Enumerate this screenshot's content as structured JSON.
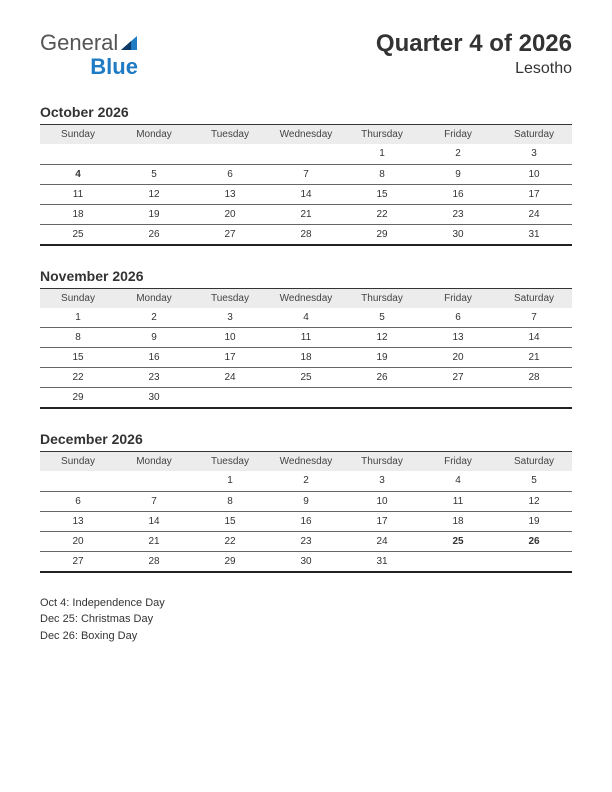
{
  "logo": {
    "part1": "General",
    "part2": "Blue"
  },
  "title": "Quarter 4 of 2026",
  "subtitle": "Lesotho",
  "colors": {
    "holiday": "#c0302c",
    "header_bg": "#ececec",
    "logo_blue": "#1e7bc4",
    "logo_gray": "#555555",
    "text": "#333333",
    "border": "#666666"
  },
  "day_headers": [
    "Sunday",
    "Monday",
    "Tuesday",
    "Wednesday",
    "Thursday",
    "Friday",
    "Saturday"
  ],
  "months": [
    {
      "name": "October 2026",
      "weeks": [
        [
          "",
          "",
          "",
          "",
          "1",
          "2",
          "3"
        ],
        [
          "4",
          "5",
          "6",
          "7",
          "8",
          "9",
          "10"
        ],
        [
          "11",
          "12",
          "13",
          "14",
          "15",
          "16",
          "17"
        ],
        [
          "18",
          "19",
          "20",
          "21",
          "22",
          "23",
          "24"
        ],
        [
          "25",
          "26",
          "27",
          "28",
          "29",
          "30",
          "31"
        ]
      ],
      "holidays": [
        [
          1,
          0
        ]
      ]
    },
    {
      "name": "November 2026",
      "weeks": [
        [
          "1",
          "2",
          "3",
          "4",
          "5",
          "6",
          "7"
        ],
        [
          "8",
          "9",
          "10",
          "11",
          "12",
          "13",
          "14"
        ],
        [
          "15",
          "16",
          "17",
          "18",
          "19",
          "20",
          "21"
        ],
        [
          "22",
          "23",
          "24",
          "25",
          "26",
          "27",
          "28"
        ],
        [
          "29",
          "30",
          "",
          "",
          "",
          "",
          ""
        ]
      ],
      "holidays": []
    },
    {
      "name": "December 2026",
      "weeks": [
        [
          "",
          "",
          "1",
          "2",
          "3",
          "4",
          "5"
        ],
        [
          "6",
          "7",
          "8",
          "9",
          "10",
          "11",
          "12"
        ],
        [
          "13",
          "14",
          "15",
          "16",
          "17",
          "18",
          "19"
        ],
        [
          "20",
          "21",
          "22",
          "23",
          "24",
          "25",
          "26"
        ],
        [
          "27",
          "28",
          "29",
          "30",
          "31",
          "",
          ""
        ]
      ],
      "holidays": [
        [
          3,
          5
        ],
        [
          3,
          6
        ]
      ]
    }
  ],
  "holiday_list": [
    "Oct 4: Independence Day",
    "Dec 25: Christmas Day",
    "Dec 26: Boxing Day"
  ]
}
